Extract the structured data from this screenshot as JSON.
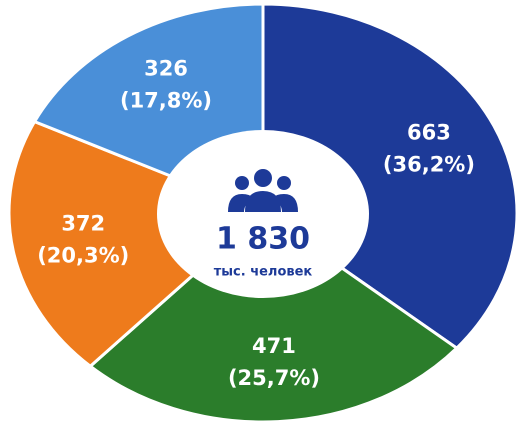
{
  "chart_data": {
    "type": "donut",
    "categories": [
      null,
      null,
      null,
      null
    ],
    "values": [
      663,
      471,
      372,
      326
    ],
    "percent_labels": [
      "(36,2%)",
      "(25,7%)",
      "(20,3%)",
      "(17,8%)"
    ],
    "colors": [
      "#1d3a98",
      "#2b7d2b",
      "#ee7b1c",
      "#4a8fd8"
    ],
    "total_label": "1 830",
    "subtitle": "тыс. человек"
  }
}
